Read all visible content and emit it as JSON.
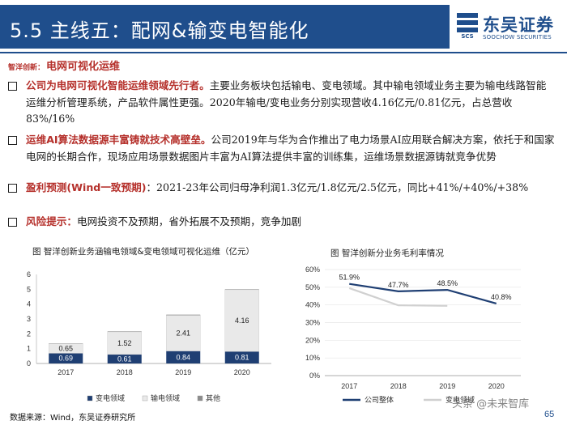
{
  "header": {
    "title": "5.5  主线五：配网&输变电智能化",
    "logo_cn": "东吴证券",
    "logo_en": "SOOCHOW SECURITIES",
    "brand_color": "#1f4e8c"
  },
  "subtitle": {
    "label": "智洋创新：",
    "value": "电网可视化运维"
  },
  "bullets": [
    {
      "highlight": "公司为电网可视化智能运维领域先行者。",
      "text": "主要业务板块包括输电、变电领域。其中输电领域业务主要为输电线路智能运维分析管理系统，产品软件属性更强。2020年输电/变电业务分别实现营收4.16亿元/0.81亿元，占总营收 83%/16%"
    },
    {
      "highlight": "运维AI算法数据源丰富铸就技术高壁垒。",
      "text": "公司2019年与华为合作推出了电力场景AI应用联合解决方案，依托于和国家电网的长期合作，现场应用场景数据图片丰富为AI算法提供丰富的训练集，运维场景数据源铸就竞争优势"
    },
    {
      "highlight": "盈利预测(Wind一致预期)",
      "text": "：2021-23年公司归母净利润1.3亿元/1.8亿元/2.5亿元，同比+41%/+40%/+38%"
    },
    {
      "highlight": "风险提示：",
      "text": "电网投资不及预期，省外拓展不及预期，竞争加剧"
    }
  ],
  "chart_data": [
    {
      "type": "bar",
      "stacked": true,
      "title": "图  智洋创新业务涵输电领域&变电领域可视化运维（亿元）",
      "categories": [
        "2017",
        "2018",
        "2019",
        "2020"
      ],
      "ylim": [
        0,
        6
      ],
      "yticks": [
        "0",
        "1",
        "2",
        "3",
        "4",
        "5",
        "6"
      ],
      "series": [
        {
          "name": "变电领域",
          "values": [
            0.69,
            0.61,
            0.84,
            0.81
          ],
          "labels": [
            "0.69",
            "0.61",
            "0.84",
            "0.81"
          ],
          "color": "#1f3f73"
        },
        {
          "name": "输电领域",
          "values": [
            0.65,
            1.52,
            2.41,
            4.16
          ],
          "labels": [
            "0.65",
            "1.52",
            "2.41",
            "4.16"
          ],
          "color": "#e9e9e9"
        },
        {
          "name": "其他",
          "values": [
            0.02,
            0.03,
            0.04,
            0.03
          ],
          "labels": [
            "",
            "",
            "",
            ""
          ],
          "color": "#8c8c8c"
        }
      ]
    },
    {
      "type": "line",
      "title": "图  智洋创新分业务毛利率情况",
      "categories": [
        "2017",
        "2018",
        "2019",
        "2020"
      ],
      "ylim": [
        0,
        60
      ],
      "yticks": [
        "0%",
        "10%",
        "20%",
        "30%",
        "40%",
        "50%",
        "60%"
      ],
      "series": [
        {
          "name": "公司整体",
          "values": [
            51.9,
            47.7,
            48.5,
            40.8
          ],
          "labels": [
            "51.9%",
            "47.7%",
            "48.5%",
            "40.8%"
          ],
          "color": "#1f3f73"
        },
        {
          "name": "变电领域",
          "values": [
            49.5,
            39.8,
            39.5,
            null
          ],
          "labels": [
            "",
            "",
            "",
            ""
          ],
          "color": "#d0d0d0"
        }
      ]
    }
  ],
  "footer": {
    "source": "数据来源：Wind，东吴证券研究所",
    "page": "65"
  },
  "watermark": "头条 @未来智库"
}
